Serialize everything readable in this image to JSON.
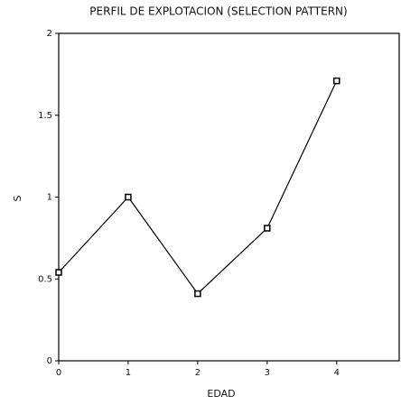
{
  "chart_data": {
    "type": "line",
    "title": "PERFIL DE EXPLOTACION (SELECTION PATTERN)",
    "xlabel": "EDAD",
    "ylabel": "S",
    "x": [
      0,
      1,
      2,
      3,
      4
    ],
    "series": [
      {
        "color": "#000000",
        "values": [
          0.54,
          1.0,
          0.41,
          0.81,
          1.71
        ]
      }
    ],
    "xlim": [
      0,
      4.9
    ],
    "xticks": [
      0,
      1,
      2,
      3,
      4
    ],
    "ylim": [
      0,
      2
    ],
    "yticks": [
      0,
      0.5,
      1,
      1.5,
      2
    ],
    "grid": false
  }
}
